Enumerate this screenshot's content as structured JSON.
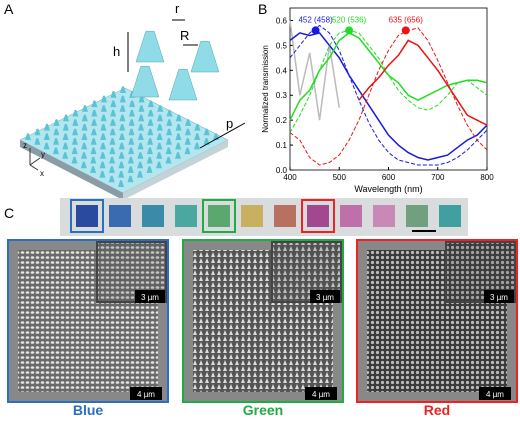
{
  "panel_labels": [
    "A",
    "B",
    "C"
  ],
  "diagram": {
    "labels": {
      "r": "r",
      "h": "h",
      "R": "R",
      "p": "p",
      "z": "z",
      "y": "y",
      "x": "x"
    }
  },
  "chart_data": {
    "type": "line",
    "x_label": "Wavelength (nm)",
    "y_label": "Normalized transmission",
    "x": [
      400,
      420,
      440,
      460,
      480,
      500,
      520,
      540,
      560,
      580,
      600,
      620,
      640,
      660,
      680,
      700,
      720,
      740,
      760,
      780,
      800
    ],
    "xlim": [
      400,
      800
    ],
    "xticks": [
      400,
      500,
      600,
      700,
      800
    ],
    "ylim": [
      0,
      0.65
    ],
    "yticks": [
      {
        "value": 0,
        "label": "0.0"
      },
      0.1,
      0.2,
      0.3,
      0.4,
      0.5,
      0.6
    ],
    "series": [
      {
        "color": "#bbbbbb",
        "dashed": false,
        "values": [
          0.6,
          0.3,
          0.47,
          0.2,
          0.5,
          0.25,
          null,
          null,
          null,
          null,
          null,
          null,
          null,
          null,
          null,
          null,
          null,
          null,
          null,
          null,
          null
        ]
      },
      {
        "color": "#1a1adb",
        "dashed": false,
        "values": [
          0.52,
          0.55,
          0.54,
          0.55,
          0.5,
          0.45,
          0.38,
          0.32,
          0.26,
          0.2,
          0.14,
          0.1,
          0.07,
          0.05,
          0.04,
          0.05,
          0.06,
          0.09,
          0.12,
          0.14,
          0.18
        ]
      },
      {
        "color": "#1a1adb",
        "dashed": true,
        "values": [
          0.45,
          0.5,
          0.55,
          0.58,
          0.55,
          0.48,
          0.38,
          0.28,
          0.19,
          0.12,
          0.07,
          0.04,
          0.03,
          0.02,
          0.02,
          0.02,
          0.03,
          0.05,
          0.08,
          0.12,
          0.16
        ]
      },
      {
        "color": "#22dd22",
        "dashed": false,
        "values": [
          0.2,
          0.28,
          0.32,
          0.4,
          0.45,
          0.52,
          0.55,
          0.53,
          0.48,
          0.43,
          0.38,
          0.35,
          0.3,
          0.28,
          0.3,
          0.32,
          0.34,
          0.35,
          0.36,
          0.36,
          0.35
        ]
      },
      {
        "color": "#22dd22",
        "dashed": true,
        "values": [
          0.15,
          0.22,
          0.3,
          0.4,
          0.5,
          0.55,
          0.56,
          0.55,
          0.5,
          0.45,
          0.38,
          0.32,
          0.28,
          0.25,
          0.24,
          0.26,
          0.3,
          0.35,
          0.36,
          0.33,
          0.3
        ]
      },
      {
        "color": "#ee1111",
        "dashed": false,
        "values": [
          null,
          null,
          null,
          null,
          null,
          null,
          null,
          0.28,
          0.33,
          0.37,
          0.42,
          0.46,
          0.52,
          0.5,
          0.45,
          0.4,
          0.34,
          0.28,
          0.22,
          0.2,
          0.18
        ]
      },
      {
        "color": "#ee1111",
        "dashed": true,
        "values": [
          0.15,
          0.12,
          0.05,
          0.02,
          0.03,
          0.06,
          0.12,
          0.2,
          0.3,
          0.4,
          0.48,
          0.54,
          0.56,
          0.57,
          0.52,
          0.44,
          0.35,
          0.26,
          0.18,
          0.12,
          0.08
        ]
      }
    ],
    "annotations": [
      {
        "x": 452,
        "y": 0.56,
        "label": "452 (458)",
        "color": "#1a1adb"
      },
      {
        "x": 520,
        "y": 0.56,
        "label": "520 (536)",
        "color": "#22dd22"
      },
      {
        "x": 635,
        "y": 0.56,
        "label": "635 (656)",
        "color": "#ee1111"
      }
    ]
  },
  "photos": {
    "inset_scale": "3 µm",
    "scale": "4 µm",
    "captions": [
      "Blue",
      "Green",
      "Red"
    ]
  }
}
